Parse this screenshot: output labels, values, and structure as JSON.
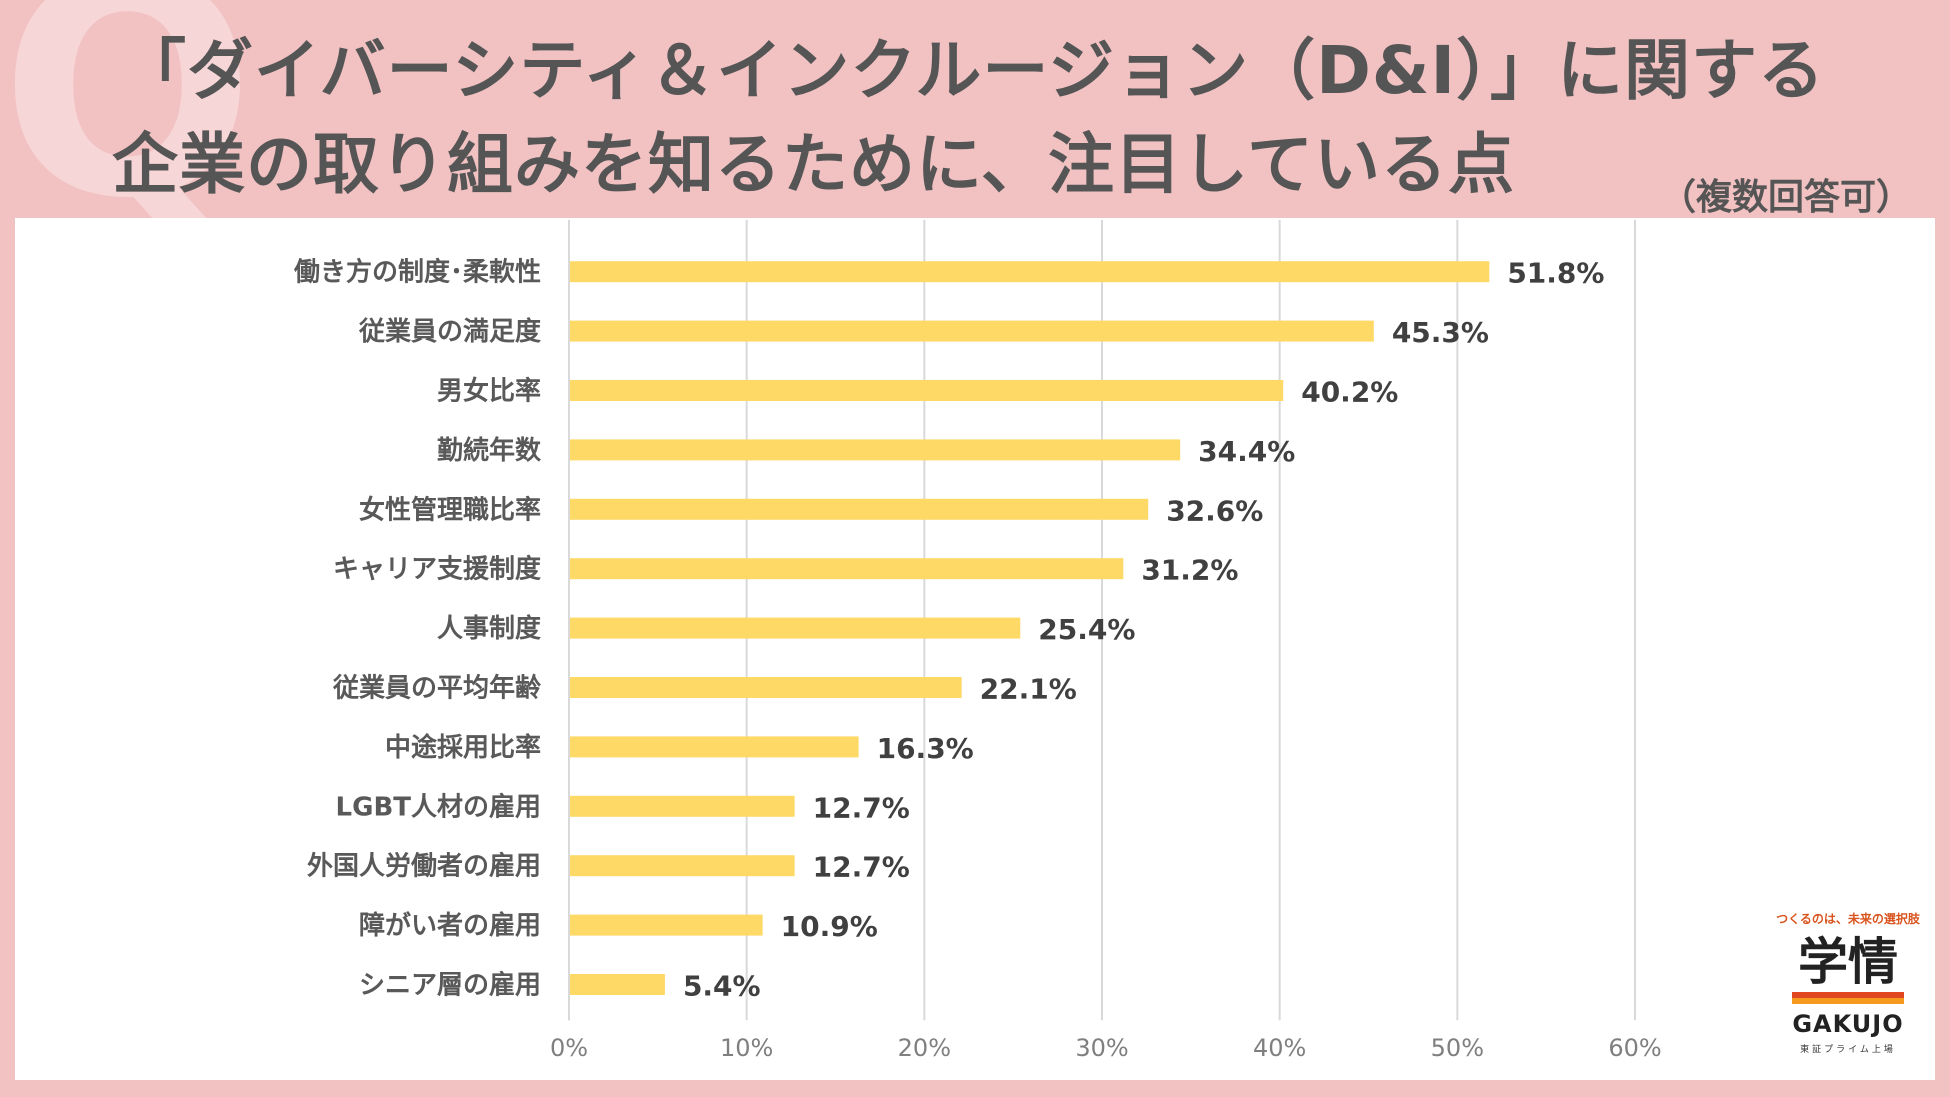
{
  "header": {
    "q_mark": "Q",
    "title_line1": "「ダイバーシティ＆インクルージョン（D&I）」に関する",
    "title_line2": "企業の取り組みを知るために、注目している点",
    "note": "（複数回答可）"
  },
  "logo": {
    "tagline": "つくるのは、未来の選択肢",
    "mark": "学情",
    "name": "GAKUJO",
    "sub": "東証プライム上場"
  },
  "chart_data": {
    "type": "bar",
    "orientation": "horizontal",
    "title": "",
    "categories": [
      "働き方の制度･柔軟性",
      "従業員の満足度",
      "男女比率",
      "勤続年数",
      "女性管理職比率",
      "キャリア支援制度",
      "人事制度",
      "従業員の平均年齢",
      "中途採用比率",
      "LGBT人材の雇用",
      "外国人労働者の雇用",
      "障がい者の雇用",
      "シニア層の雇用"
    ],
    "values": [
      51.8,
      45.3,
      40.2,
      34.4,
      32.6,
      31.2,
      25.4,
      22.1,
      16.3,
      12.7,
      12.7,
      10.9,
      5.4
    ],
    "value_labels": [
      "51.8%",
      "45.3%",
      "40.2%",
      "34.4%",
      "32.6%",
      "31.2%",
      "25.4%",
      "22.1%",
      "16.3%",
      "12.7%",
      "12.7%",
      "10.9%",
      "5.4%"
    ],
    "xlim": [
      0,
      60
    ],
    "x_ticks": [
      0,
      10,
      20,
      30,
      40,
      50,
      60
    ],
    "x_tick_labels": [
      "0%",
      "10%",
      "20%",
      "30%",
      "40%",
      "50%",
      "60%"
    ],
    "grid": true,
    "bar_color": "#ffd966",
    "grid_color": "#d9d9d9"
  }
}
